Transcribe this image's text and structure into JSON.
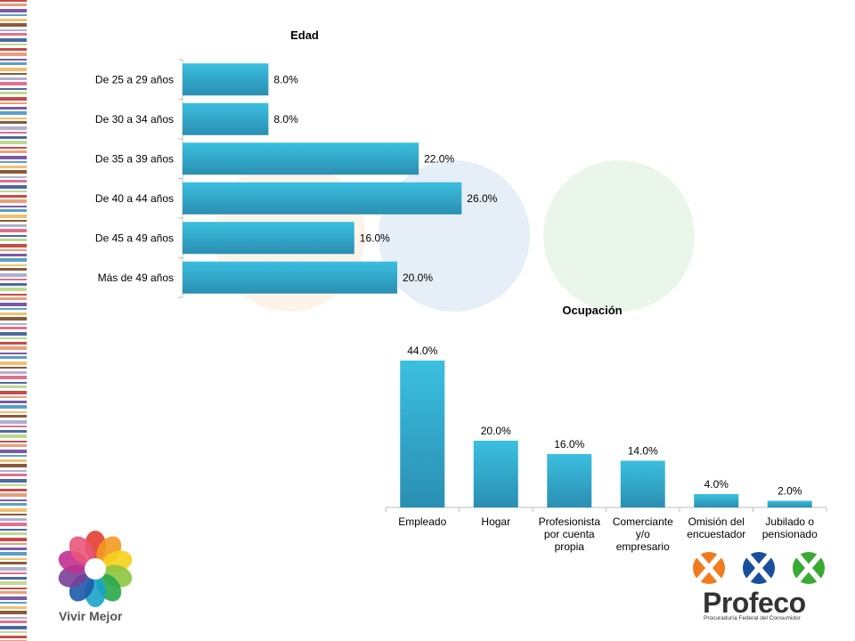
{
  "colors": {
    "bar_top": "#3bbfe0",
    "bar_bottom": "#2a8fb2",
    "axis": "#bfbfbf",
    "text": "#000000"
  },
  "branding": {
    "left_logo_text": "Vivir Mejor",
    "right_logo_text": "Profeco",
    "right_logo_subtitle": "Procuraduría Federal del Consumidor"
  },
  "chart_data": [
    {
      "type": "bar",
      "orientation": "horizontal",
      "title": "Edad",
      "categories": [
        "De 25 a 29 años",
        "De 30 a 34 años",
        "De 35 a 39 años",
        "De 40 a 44 años",
        "De 45 a 49 años",
        "Más de 49 años"
      ],
      "values": [
        8.0,
        8.0,
        22.0,
        26.0,
        16.0,
        20.0
      ],
      "value_labels": [
        "8.0%",
        "8.0%",
        "22.0%",
        "26.0%",
        "16.0%",
        "20.0%"
      ],
      "xlim": [
        0,
        32
      ],
      "grid": false
    },
    {
      "type": "bar",
      "orientation": "vertical",
      "title": "Ocupación",
      "categories": [
        [
          "Empleado"
        ],
        [
          "Hogar"
        ],
        [
          "Profesionista",
          "por cuenta",
          "propia"
        ],
        [
          "Comerciante",
          "y/o",
          "empresario"
        ],
        [
          "Omisión del",
          "encuestador"
        ],
        [
          "Jubilado o",
          "pensionado"
        ]
      ],
      "values": [
        44.0,
        20.0,
        16.0,
        14.0,
        4.0,
        2.0
      ],
      "value_labels": [
        "44.0%",
        "20.0%",
        "16.0%",
        "14.0%",
        "4.0%",
        "2.0%"
      ],
      "ylim": [
        0,
        48
      ],
      "grid": false
    }
  ]
}
